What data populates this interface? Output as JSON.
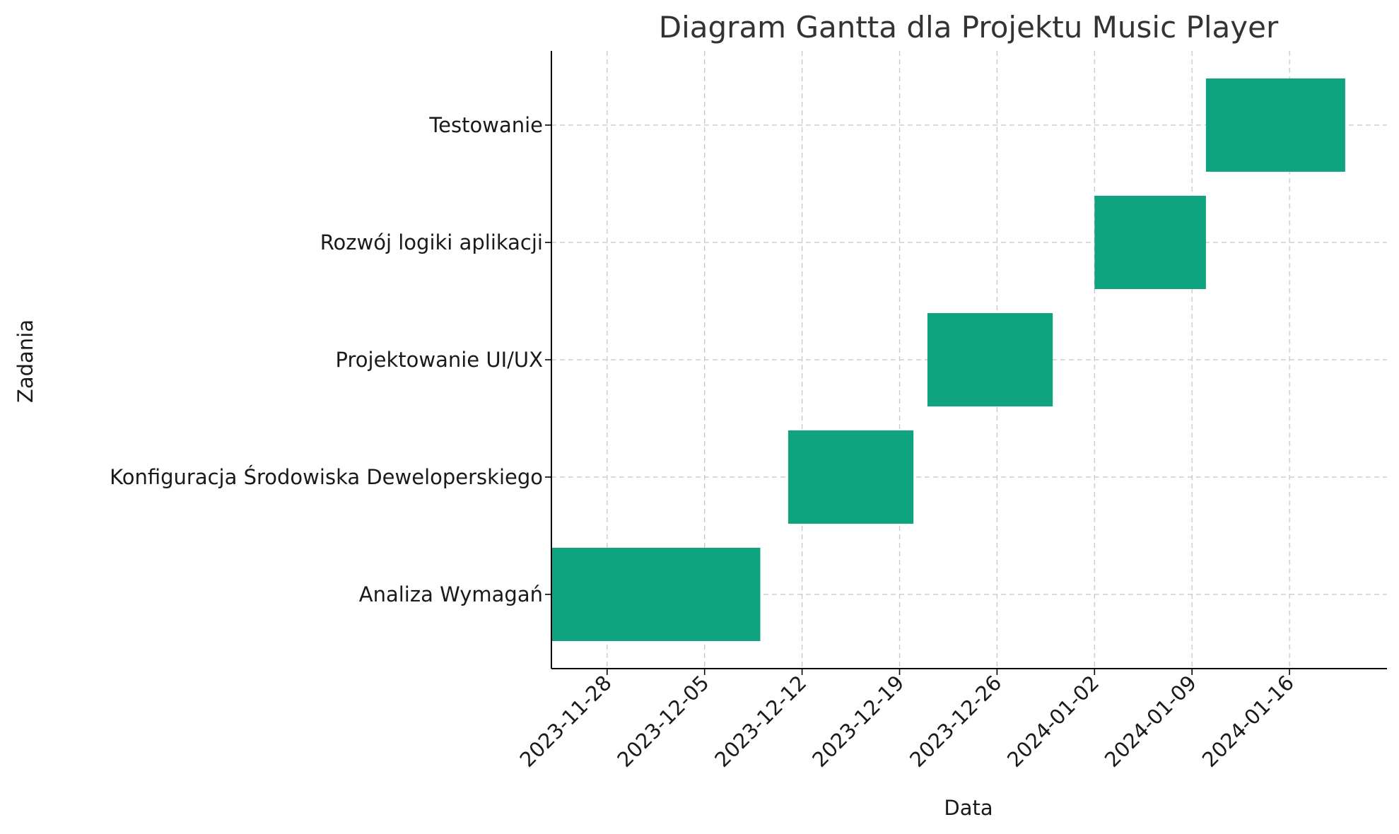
{
  "chart_data": {
    "type": "gantt",
    "title": "Diagram Gantta dla Projektu Music Player",
    "xlabel": "Data",
    "ylabel": "Zadania",
    "grid": true,
    "bar_color": "#10a37f",
    "x_range": [
      "2023-11-24",
      "2024-01-23"
    ],
    "x_ticks": [
      "2023-11-28",
      "2023-12-05",
      "2023-12-12",
      "2023-12-19",
      "2023-12-26",
      "2024-01-02",
      "2024-01-09",
      "2024-01-16"
    ],
    "tasks": [
      {
        "name": "Analiza Wymagań",
        "start": "2023-11-24",
        "end": "2023-12-09"
      },
      {
        "name": "Konfiguracja Środowiska Deweloperskiego",
        "start": "2023-12-11",
        "end": "2023-12-20"
      },
      {
        "name": "Projektowanie UI/UX",
        "start": "2023-12-21",
        "end": "2023-12-30"
      },
      {
        "name": "Rozwój logiki aplikacji",
        "start": "2024-01-02",
        "end": "2024-01-10"
      },
      {
        "name": "Testowanie",
        "start": "2024-01-10",
        "end": "2024-01-20"
      }
    ]
  }
}
